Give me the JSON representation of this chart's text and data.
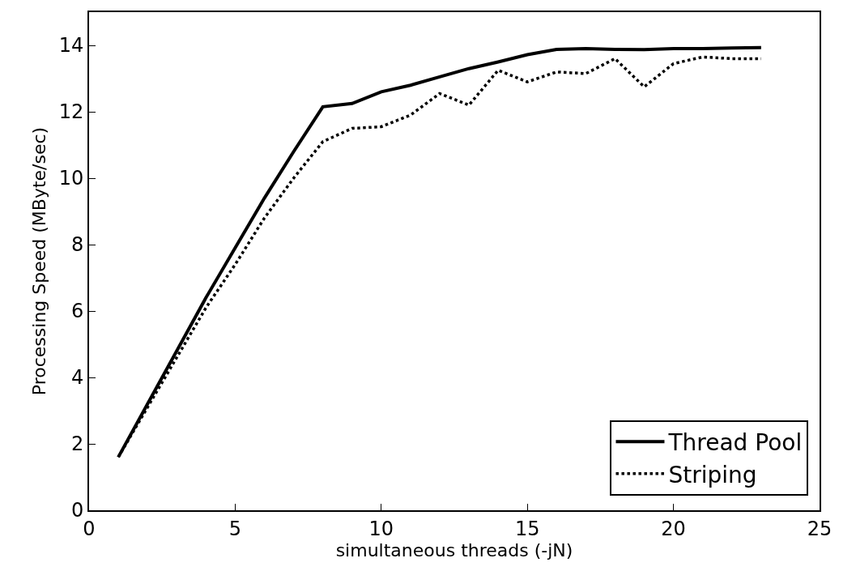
{
  "chart_data": {
    "type": "line",
    "xlabel": "simultaneous threads (-jN)",
    "ylabel": "Processing Speed (MByte/sec)",
    "x": [
      1,
      2,
      3,
      4,
      5,
      6,
      7,
      8,
      9,
      10,
      11,
      12,
      13,
      14,
      15,
      16,
      17,
      18,
      19,
      20,
      21,
      22,
      23
    ],
    "series": [
      {
        "name": "Thread Pool",
        "color": "#000000",
        "line_style": "solid",
        "values": [
          1.6,
          3.2,
          4.8,
          6.4,
          7.9,
          9.4,
          10.8,
          12.15,
          12.25,
          12.6,
          12.8,
          13.05,
          13.3,
          13.5,
          13.72,
          13.88,
          13.9,
          13.88,
          13.87,
          13.9,
          13.9,
          13.92,
          13.93
        ]
      },
      {
        "name": "Striping",
        "color": "#000000",
        "line_style": "dotted",
        "values": [
          1.6,
          3.1,
          4.6,
          6.1,
          7.4,
          8.8,
          10.0,
          11.1,
          11.5,
          11.55,
          11.9,
          12.55,
          12.2,
          13.25,
          12.9,
          13.2,
          13.15,
          13.6,
          12.75,
          13.45,
          13.65,
          13.6,
          13.6
        ]
      }
    ],
    "xlim": [
      0,
      25
    ],
    "xticks": [
      0,
      5,
      10,
      15,
      20,
      25
    ],
    "ylim": [
      0,
      15
    ],
    "yticks": [
      0,
      2,
      4,
      6,
      8,
      10,
      12,
      14
    ],
    "grid": false,
    "legend": "bottom right",
    "marker": "none"
  }
}
